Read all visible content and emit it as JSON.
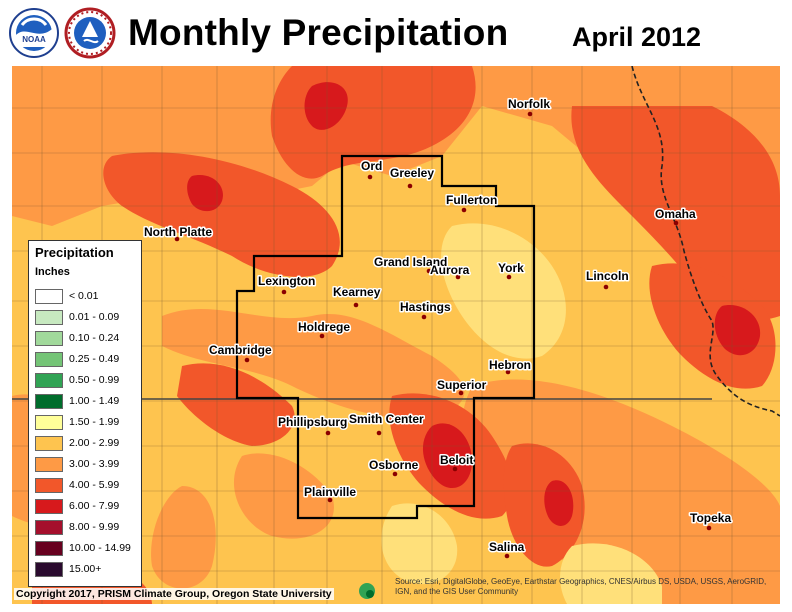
{
  "title": "Monthly Precipitation",
  "date": "April 2012",
  "logos": [
    {
      "name": "noaa-logo",
      "text": "NOAA"
    },
    {
      "name": "nws-logo",
      "text": "NATIONAL WEATHER SERVICE"
    }
  ],
  "legend": {
    "title": "Precipitation",
    "units": "Inches",
    "items": [
      {
        "label": "< 0.01",
        "color": "#ffffff"
      },
      {
        "label": "0.01 - 0.09",
        "color": "#c7e9c0"
      },
      {
        "label": "0.10 - 0.24",
        "color": "#a1d99b"
      },
      {
        "label": "0.25 - 0.49",
        "color": "#74c476"
      },
      {
        "label": "0.50 - 0.99",
        "color": "#31a354"
      },
      {
        "label": "1.00 - 1.49",
        "color": "#006d2c"
      },
      {
        "label": "1.50 - 1.99",
        "color": "#ffff99"
      },
      {
        "label": "2.00 - 2.99",
        "color": "#fec44f"
      },
      {
        "label": "3.00 - 3.99",
        "color": "#fe9a45"
      },
      {
        "label": "4.00 - 5.99",
        "color": "#f2572a"
      },
      {
        "label": "6.00 - 7.99",
        "color": "#d7191c"
      },
      {
        "label": "8.00 - 9.99",
        "color": "#a50f2c"
      },
      {
        "label": "10.00 - 14.99",
        "color": "#67001f"
      },
      {
        "label": "15.00+",
        "color": "#2a0a2e"
      }
    ]
  },
  "cities": [
    {
      "name": "Norfolk"
    },
    {
      "name": "Ord"
    },
    {
      "name": "Greeley"
    },
    {
      "name": "Fullerton"
    },
    {
      "name": "North Platte"
    },
    {
      "name": "Omaha"
    },
    {
      "name": "Grand Island"
    },
    {
      "name": "Aurora"
    },
    {
      "name": "York"
    },
    {
      "name": "Lincoln"
    },
    {
      "name": "Lexington"
    },
    {
      "name": "Kearney"
    },
    {
      "name": "Hastings"
    },
    {
      "name": "Holdrege"
    },
    {
      "name": "Cambridge"
    },
    {
      "name": "Hebron"
    },
    {
      "name": "Superior"
    },
    {
      "name": "Phillipsburg"
    },
    {
      "name": "Smith Center"
    },
    {
      "name": "Beloit"
    },
    {
      "name": "Osborne"
    },
    {
      "name": "Plainville"
    },
    {
      "name": "Topeka"
    },
    {
      "name": "Salina"
    }
  ],
  "copyright": "Copyright 2017, PRISM Climate Group, Oregon State University",
  "source": "Source: Esri, DigitalGlobe, GeoEye, Earthstar Geographics, CNES/Airbus DS, USDA, USGS, AeroGRID, IGN, and the GIS User Community"
}
